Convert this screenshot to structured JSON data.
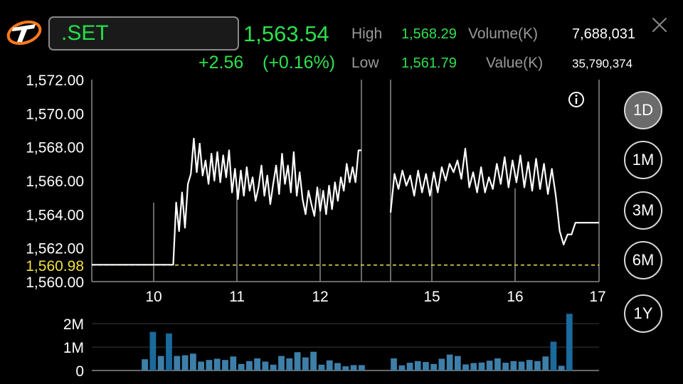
{
  "header": {
    "symbol": ".SET",
    "last_price": "1,563.54",
    "change": "+2.56",
    "change_pct": "(+0.16%)",
    "high_label": "High",
    "high_value": "1,568.29",
    "low_label": "Low",
    "low_value": "1,561.79",
    "volume_label": "Volume(K)",
    "volume_value": "7,688,031",
    "value_label": "Value(K)",
    "value_value": "35,790,374"
  },
  "icons": {
    "logo": "brand-logo-icon",
    "close": "close-icon",
    "info": "info-icon"
  },
  "colors": {
    "up": "#2ee04e",
    "line": "#ffffff",
    "ref_line": "#f0e040",
    "volume_bar": "#3d7fa8",
    "volume_bar_dark": "#1a6a9c"
  },
  "periods": [
    {
      "label": "1D",
      "active": true
    },
    {
      "label": "1M",
      "active": false
    },
    {
      "label": "3M",
      "active": false
    },
    {
      "label": "6M",
      "active": false
    },
    {
      "label": "1Y",
      "active": false
    }
  ],
  "chart_data": {
    "type": "line",
    "reference_value": 1560.98,
    "reference_label": "1,560.98",
    "y_ticks": [
      "1,572.00",
      "1,570.00",
      "1,568.00",
      "1,566.00",
      "1,564.00",
      "1,562.00",
      "1,560.00"
    ],
    "y_tick_values": [
      1572,
      1570,
      1568,
      1566,
      1564,
      1562,
      1560
    ],
    "ylim": [
      1560,
      1572
    ],
    "x_ticks": [
      "10",
      "11",
      "12",
      "15",
      "16",
      "17"
    ],
    "segments": [
      [
        1561,
        1561,
        1561,
        1561,
        1561,
        1561,
        1561,
        1561,
        1561,
        1561,
        1561,
        1561,
        1564.7,
        1563,
        1565.3,
        1563.2,
        1565.8,
        1566.4,
        1568.5,
        1566.5,
        1568.2,
        1566.3,
        1567.2,
        1565.8,
        1567.6,
        1566,
        1567.7,
        1565.9,
        1567.5,
        1566.2,
        1567.8,
        1565.3,
        1566.7,
        1564.9,
        1566.6,
        1565.1,
        1566.8,
        1565.4,
        1566.2,
        1564.8,
        1565.6,
        1566.9,
        1565.1,
        1566.3,
        1564.6,
        1565.8,
        1566.9,
        1565.2,
        1567.6,
        1565.8,
        1566.9,
        1565.3,
        1567.7,
        1565.1,
        1566.5,
        1564.9,
        1564,
        1565.4,
        1564.6,
        1563.9,
        1565.6,
        1564.2,
        1565.4,
        1564,
        1565.7,
        1564.3,
        1565.9,
        1564.8,
        1566.2,
        1565.4,
        1567,
        1565.9,
        1566.8,
        1565.9,
        1567.8,
        1567.8
      ],
      [
        1564.1,
        1566.4,
        1565.5,
        1566.6,
        1565.7,
        1566.3,
        1565.1,
        1566.6,
        1565.3,
        1566.4,
        1565.1,
        1566.5,
        1565.3,
        1566.8,
        1566,
        1567,
        1566.5,
        1567.2,
        1566.1,
        1567.9,
        1565.6,
        1566.5,
        1565.3,
        1566.8,
        1565.3,
        1566.2,
        1565.5,
        1567,
        1565.8,
        1567.4,
        1565.6,
        1567.2,
        1565.9,
        1567.5,
        1565.6,
        1567.1,
        1565.4,
        1567.3,
        1565.5,
        1567,
        1565.2,
        1566.7,
        1565.1,
        1563,
        1562.2,
        1562.8,
        1562.8,
        1563.5,
        1563.5,
        1563.5,
        1563.5,
        1563.5,
        1563.5,
        1563.5
      ]
    ],
    "volume_ticks": [
      "2M",
      "1M",
      "0"
    ],
    "volume_tick_values": [
      2000000,
      1000000,
      0
    ],
    "volume_ylim": [
      0,
      2400000
    ],
    "volume_segments": [
      [
        480000,
        1650000,
        620000,
        1580000,
        620000,
        650000,
        720000,
        380000,
        450000,
        500000,
        450000,
        600000,
        280000,
        400000,
        520000,
        380000,
        250000,
        620000,
        520000,
        780000,
        560000,
        800000,
        250000,
        430000,
        320000,
        180000,
        230000,
        230000
      ],
      [
        520000,
        220000,
        330000,
        400000,
        360000,
        280000,
        500000,
        680000,
        620000,
        260000,
        320000,
        340000,
        420000,
        520000,
        330000,
        400000,
        380000,
        450000,
        400000,
        600000,
        1230000,
        200000,
        2420000
      ]
    ]
  }
}
